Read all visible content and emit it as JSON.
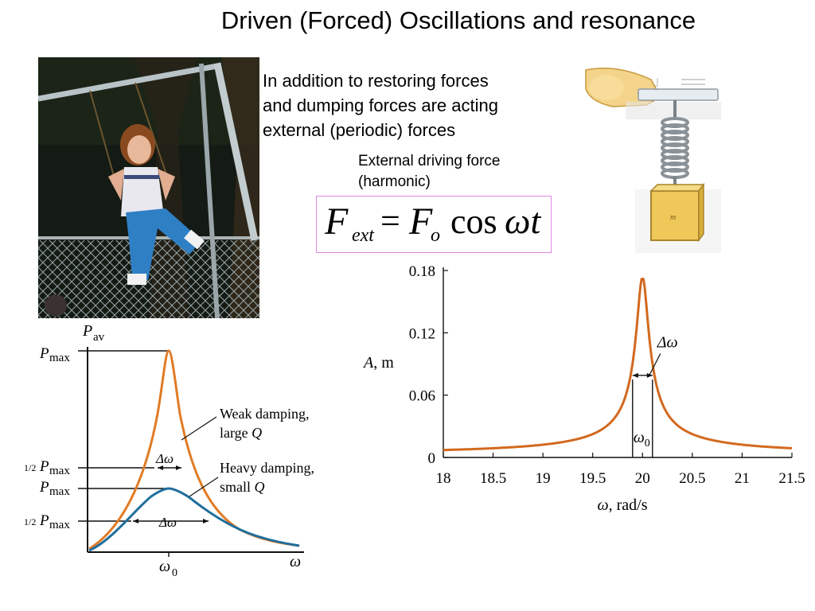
{
  "slide": {
    "title": "Driven (Forced) Oscillations and resonance",
    "intro_lines": [
      "In addition to restoring forces",
      "and dumping forces are acting",
      "external (periodic) forces"
    ],
    "force_caption_lines": [
      "External driving force",
      "(harmonic)"
    ],
    "formula": {
      "lhs_symbol": "F",
      "lhs_subscript": "ext",
      "equals": "=",
      "rhs_symbol": "F",
      "rhs_subscript": "o",
      "function": "cos",
      "argument": "ωt"
    }
  },
  "power_plot": {
    "y_symbol": "P",
    "y_subscript": "av",
    "y_levels": [
      {
        "fraction": "",
        "symbol": "P",
        "subscript": "max"
      },
      {
        "fraction": "1/2",
        "symbol": "P",
        "subscript": "max"
      },
      {
        "fraction": "",
        "symbol": "P",
        "subscript": "max"
      },
      {
        "fraction": "1/2",
        "symbol": "P",
        "subscript": "max"
      }
    ],
    "x_symbol": "ω",
    "x_tick_symbol": "ω",
    "x_tick_subscript": "0",
    "width_label": "Δω",
    "weak_label_lines": [
      "Weak damping,",
      "large "
    ],
    "weak_label_q": "Q",
    "heavy_label_lines": [
      "Heavy damping,",
      "small "
    ],
    "heavy_label_q": "Q",
    "weak_color": "#e07b24",
    "heavy_color": "#1f6e9c"
  },
  "chart_data": {
    "type": "line",
    "title": "",
    "xlabel": "ω, rad/s",
    "ylabel": "A, m",
    "xlim": [
      18,
      21.5
    ],
    "ylim": [
      0,
      0.18
    ],
    "x_ticks": [
      "18",
      "18.5",
      "19",
      "19.5",
      "20",
      "20.5",
      "21",
      "21.5"
    ],
    "y_ticks": [
      "0",
      "0.06",
      "0.12",
      "0.18"
    ],
    "series": [
      {
        "color": "#d2691e",
        "x": [
          18.0,
          18.5,
          19.0,
          19.3,
          19.5,
          19.7,
          19.8,
          19.9,
          19.95,
          20.0,
          20.05,
          20.1,
          20.2,
          20.3,
          20.5,
          20.7,
          21.0,
          21.5
        ],
        "y": [
          0.004,
          0.005,
          0.008,
          0.011,
          0.015,
          0.025,
          0.038,
          0.08,
          0.125,
          0.172,
          0.125,
          0.08,
          0.038,
          0.025,
          0.013,
          0.009,
          0.006,
          0.003
        ]
      }
    ],
    "annotations": {
      "peak_width": "Δω",
      "center_symbol": "ω",
      "center_subscript": "0",
      "width_bounds": [
        19.9,
        20.1
      ]
    },
    "grid": false,
    "legend": "none"
  }
}
